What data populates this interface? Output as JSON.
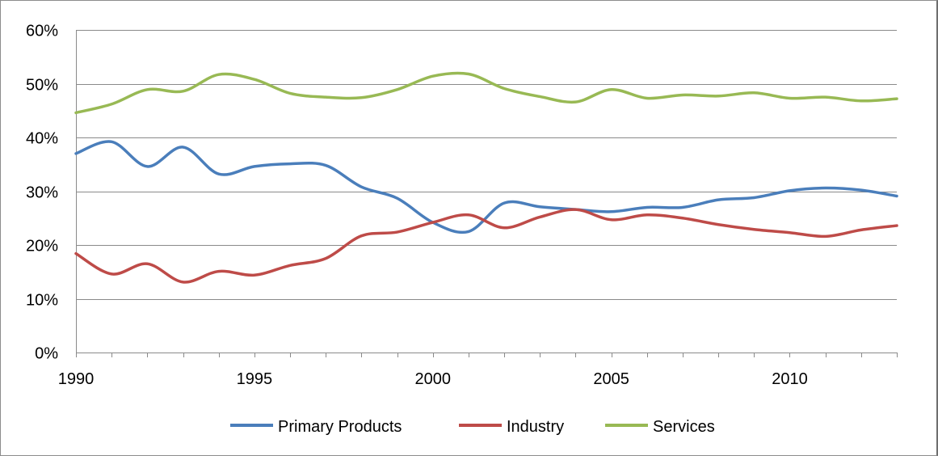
{
  "chart_data": {
    "type": "line",
    "title": "",
    "xlabel": "",
    "ylabel": "",
    "x": [
      1990,
      1991,
      1992,
      1993,
      1994,
      1995,
      1996,
      1997,
      1998,
      1999,
      2000,
      2001,
      2002,
      2003,
      2004,
      2005,
      2006,
      2007,
      2008,
      2009,
      2010,
      2011,
      2012,
      2013
    ],
    "xlim": [
      1990,
      2013
    ],
    "ylim": [
      0,
      60
    ],
    "x_ticks": [
      1990,
      1995,
      2000,
      2005,
      2010
    ],
    "x_tick_labels": [
      "1990",
      "1995",
      "2000",
      "2005",
      "2010"
    ],
    "y_ticks": [
      0,
      10,
      20,
      30,
      40,
      50,
      60
    ],
    "y_tick_labels": [
      "0%",
      "10%",
      "20%",
      "30%",
      "40%",
      "50%",
      "60%"
    ],
    "grid": "horizontal",
    "legend_position": "bottom",
    "series": [
      {
        "name": "Primary Products",
        "color": "#4a7ebb",
        "values": [
          37.0,
          39.2,
          34.6,
          38.2,
          33.2,
          34.6,
          35.1,
          34.8,
          30.8,
          28.7,
          24.2,
          22.5,
          27.8,
          27.1,
          26.6,
          26.2,
          27.0,
          27.0,
          28.4,
          28.8,
          30.1,
          30.6,
          30.2,
          29.1
        ]
      },
      {
        "name": "Industry",
        "color": "#be4b48",
        "values": [
          18.4,
          14.6,
          16.5,
          13.1,
          15.1,
          14.4,
          16.2,
          17.5,
          21.7,
          22.4,
          24.2,
          25.6,
          23.2,
          25.2,
          26.6,
          24.7,
          25.6,
          25.0,
          23.8,
          22.9,
          22.3,
          21.6,
          22.8,
          23.6
        ]
      },
      {
        "name": "Services",
        "color": "#98b954",
        "values": [
          44.6,
          46.2,
          48.9,
          48.6,
          51.7,
          50.8,
          48.2,
          47.5,
          47.4,
          48.9,
          51.4,
          51.8,
          49.1,
          47.6,
          46.6,
          48.9,
          47.3,
          47.9,
          47.7,
          48.3,
          47.3,
          47.5,
          46.8,
          47.2
        ]
      }
    ]
  }
}
